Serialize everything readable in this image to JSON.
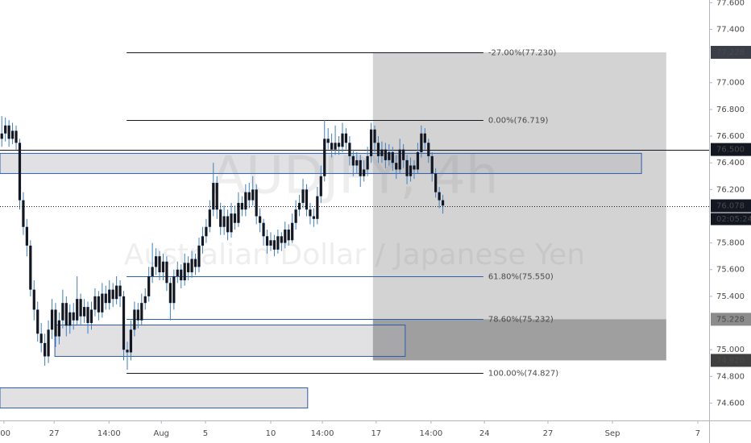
{
  "chart_data": {
    "type": "candlestick",
    "watermark": "AUDJPY, 4h",
    "subtitle": "Australian Dollar / Japanese Yen",
    "color": "#131722",
    "wick_color": "#3d7fc1",
    "xlim": [
      -0.5,
      197.25
    ],
    "ylim": [
      74.47,
      77.62
    ],
    "xticks": [
      {
        "value": 0.6,
        "label": ":00"
      },
      {
        "value": 14.6,
        "label": "27"
      },
      {
        "value": 29.9,
        "label": "14:00"
      },
      {
        "value": 44.5,
        "label": "Aug"
      },
      {
        "value": 56.8,
        "label": "5"
      },
      {
        "value": 75,
        "label": "10"
      },
      {
        "value": 89.4,
        "label": "14:00"
      },
      {
        "value": 104.4,
        "label": "17"
      },
      {
        "value": 119.7,
        "label": "14:00"
      },
      {
        "value": 134.6,
        "label": "24"
      },
      {
        "value": 152.3,
        "label": "27"
      },
      {
        "value": 170.3,
        "label": "Sep"
      },
      {
        "value": 194.1,
        "label": "7"
      }
    ],
    "yticks": [
      {
        "value": 74.6,
        "label": "74.600"
      },
      {
        "value": 74.8,
        "label": "74.800"
      },
      {
        "value": 75.0,
        "label": "75.000"
      },
      {
        "value": 75.4,
        "label": "75.400"
      },
      {
        "value": 75.6,
        "label": "75.600"
      },
      {
        "value": 75.8,
        "label": "75.800"
      },
      {
        "value": 76.2,
        "label": "76.200"
      },
      {
        "value": 76.4,
        "label": "76.400"
      },
      {
        "value": 76.6,
        "label": "76.600"
      },
      {
        "value": 76.8,
        "label": "76.800"
      },
      {
        "value": 77.0,
        "label": "77.000"
      },
      {
        "value": 77.4,
        "label": "77.400"
      },
      {
        "value": 77.6,
        "label": "77.600"
      }
    ],
    "x": [
      0,
      1,
      2,
      3,
      4,
      5,
      6,
      7,
      8,
      9,
      10,
      11,
      12,
      13,
      14,
      15,
      16,
      17,
      18,
      19,
      20,
      21,
      22,
      23,
      24,
      25,
      26,
      27,
      28,
      29,
      30,
      31,
      32,
      33,
      34,
      35,
      36,
      37,
      38,
      39,
      40,
      41,
      42,
      43,
      44,
      45,
      46,
      47,
      48,
      49,
      50,
      51,
      52,
      53,
      54,
      55,
      56,
      57,
      58,
      59,
      60,
      61,
      62,
      63,
      64,
      65,
      66,
      67,
      68,
      69,
      70,
      71,
      72,
      73,
      74,
      75,
      76,
      77,
      78,
      79,
      80,
      81,
      82,
      83,
      84,
      85,
      86,
      87,
      88,
      89,
      90,
      91,
      92,
      93,
      94,
      95,
      96,
      97,
      98,
      99,
      100,
      101,
      102,
      103,
      104,
      105,
      106,
      107,
      108,
      109,
      110,
      111,
      112,
      113,
      114,
      115,
      116,
      117,
      118,
      119,
      120,
      121,
      122,
      123
    ],
    "open": [
      76.58,
      76.62,
      76.68,
      76.58,
      76.64,
      76.55,
      76.12,
      75.92,
      75.78,
      75.45,
      75.3,
      75.12,
      75.05,
      74.95,
      75.15,
      75.3,
      75.1,
      75.22,
      75.35,
      75.18,
      75.28,
      75.22,
      75.38,
      75.25,
      75.32,
      75.2,
      75.3,
      75.4,
      75.28,
      75.42,
      75.35,
      75.45,
      75.38,
      75.48,
      75.4,
      75.0,
      74.98,
      75.15,
      75.3,
      75.22,
      75.35,
      75.4,
      75.55,
      75.62,
      75.7,
      75.58,
      75.66,
      75.5,
      75.35,
      75.55,
      75.6,
      75.52,
      75.65,
      75.58,
      75.68,
      75.62,
      75.78,
      75.85,
      75.92,
      76.05,
      76.25,
      76.05,
      75.92,
      76.0,
      75.88,
      76.02,
      75.95,
      76.1,
      76.05,
      76.18,
      76.12,
      76.2,
      76.0,
      75.95,
      75.85,
      75.78,
      75.82,
      75.75,
      75.85,
      75.8,
      75.9,
      75.82,
      75.95,
      76.05,
      76.1,
      76.2,
      76.05,
      76.0,
      75.98,
      76.15,
      76.3,
      76.58,
      76.55,
      76.5,
      76.55,
      76.52,
      76.62,
      76.55,
      76.45,
      76.38,
      76.42,
      76.3,
      76.35,
      76.45,
      76.65,
      76.55,
      76.45,
      76.5,
      76.42,
      76.48,
      76.4,
      76.35,
      76.5,
      76.42,
      76.3,
      76.38,
      76.35,
      76.48,
      76.62,
      76.55,
      76.45,
      76.32,
      76.18,
      76.12
    ],
    "high": [
      76.75,
      76.74,
      76.72,
      76.7,
      76.68,
      76.58,
      76.18,
      75.98,
      75.82,
      75.52,
      75.36,
      75.2,
      75.12,
      75.22,
      75.38,
      75.35,
      75.28,
      75.45,
      75.4,
      75.34,
      75.35,
      75.55,
      75.42,
      75.38,
      75.36,
      75.36,
      75.46,
      75.44,
      75.5,
      75.48,
      75.52,
      75.5,
      75.55,
      75.52,
      75.44,
      75.06,
      75.22,
      75.36,
      75.35,
      75.42,
      75.46,
      75.62,
      75.8,
      75.76,
      75.74,
      75.72,
      75.7,
      75.54,
      75.6,
      75.66,
      75.64,
      75.72,
      75.7,
      75.74,
      75.72,
      75.84,
      75.92,
      75.98,
      76.12,
      76.4,
      76.3,
      76.1,
      76.08,
      76.05,
      76.1,
      76.08,
      76.18,
      76.15,
      76.24,
      76.25,
      76.3,
      76.24,
      76.06,
      75.98,
      75.9,
      75.88,
      75.86,
      75.9,
      75.88,
      75.96,
      75.94,
      76.02,
      76.12,
      76.16,
      76.28,
      76.24,
      76.1,
      76.06,
      76.22,
      76.38,
      76.72,
      76.66,
      76.62,
      76.68,
      76.6,
      76.7,
      76.66,
      76.6,
      76.5,
      76.48,
      76.46,
      76.42,
      76.52,
      76.7,
      76.68,
      76.6,
      76.56,
      76.55,
      76.54,
      76.52,
      76.46,
      76.58,
      76.54,
      76.46,
      76.44,
      76.42,
      76.55,
      76.68,
      76.66,
      76.58,
      76.48,
      76.36,
      76.22,
      76.16
    ],
    "low": [
      76.52,
      76.56,
      76.52,
      76.54,
      76.5,
      76.05,
      75.86,
      75.7,
      75.4,
      75.22,
      75.06,
      74.98,
      74.88,
      74.9,
      75.08,
      75.02,
      75.04,
      75.16,
      75.1,
      75.12,
      75.15,
      75.18,
      75.18,
      75.2,
      75.12,
      75.15,
      75.25,
      75.22,
      75.24,
      75.3,
      75.3,
      75.32,
      75.34,
      75.32,
      74.92,
      74.85,
      74.92,
      75.1,
      75.16,
      75.18,
      75.3,
      75.36,
      75.5,
      75.56,
      75.52,
      75.52,
      75.44,
      75.22,
      75.3,
      75.5,
      75.46,
      75.48,
      75.52,
      75.54,
      75.56,
      75.58,
      75.72,
      75.8,
      75.88,
      76.0,
      75.98,
      75.86,
      75.86,
      75.82,
      75.84,
      75.9,
      75.92,
      76.0,
      76.0,
      76.06,
      76.08,
      75.94,
      75.88,
      75.78,
      75.72,
      75.74,
      75.7,
      75.72,
      75.74,
      75.76,
      75.78,
      75.8,
      75.9,
      76.0,
      76.06,
      76.0,
      75.94,
      75.92,
      75.94,
      76.1,
      76.26,
      76.5,
      76.44,
      76.46,
      76.46,
      76.48,
      76.5,
      76.38,
      76.3,
      76.32,
      76.22,
      76.26,
      76.3,
      76.4,
      76.48,
      76.4,
      76.4,
      76.36,
      76.38,
      76.34,
      76.28,
      76.32,
      76.36,
      76.24,
      76.26,
      76.28,
      76.32,
      76.44,
      76.5,
      76.4,
      76.26,
      76.14,
      76.06,
      76.02
    ],
    "close": [
      76.62,
      76.68,
      76.58,
      76.64,
      76.55,
      76.12,
      75.92,
      75.78,
      75.45,
      75.3,
      75.12,
      75.05,
      74.95,
      75.15,
      75.3,
      75.1,
      75.22,
      75.35,
      75.18,
      75.28,
      75.22,
      75.38,
      75.25,
      75.32,
      75.2,
      75.3,
      75.4,
      75.28,
      75.42,
      75.35,
      75.45,
      75.38,
      75.48,
      75.4,
      75.0,
      74.98,
      75.15,
      75.3,
      75.22,
      75.35,
      75.4,
      75.55,
      75.62,
      75.7,
      75.58,
      75.66,
      75.5,
      75.35,
      75.55,
      75.6,
      75.52,
      75.65,
      75.58,
      75.68,
      75.62,
      75.78,
      75.85,
      75.92,
      76.05,
      76.25,
      76.05,
      75.92,
      76.0,
      75.88,
      76.02,
      75.95,
      76.1,
      76.05,
      76.18,
      76.12,
      76.2,
      76.0,
      75.95,
      75.85,
      75.78,
      75.82,
      75.75,
      75.85,
      75.8,
      75.9,
      75.82,
      75.95,
      76.05,
      76.1,
      76.2,
      76.05,
      76.0,
      75.98,
      76.15,
      76.3,
      76.58,
      76.55,
      76.5,
      76.55,
      76.52,
      76.62,
      76.55,
      76.45,
      76.38,
      76.42,
      76.3,
      76.35,
      76.45,
      76.65,
      76.55,
      76.45,
      76.5,
      76.42,
      76.48,
      76.4,
      76.35,
      76.5,
      76.42,
      76.3,
      76.38,
      76.35,
      76.48,
      76.62,
      76.55,
      76.45,
      76.32,
      76.18,
      76.12,
      76.08
    ],
    "zones": [
      {
        "x": [
          -0.5,
          178.4
        ],
        "y": [
          76.32,
          76.471
        ]
      },
      {
        "x": [
          14.8,
          112.5
        ],
        "y": [
          74.95,
          75.185
        ]
      },
      {
        "x": [
          -0.5,
          85.3
        ],
        "y": [
          74.563,
          74.714
        ]
      }
    ],
    "position": {
      "x": [
        103.5,
        185.3
      ],
      "target": {
        "value": 77.228,
        "label": "77.228"
      },
      "entry": {
        "value": 75.228,
        "label": "75.228"
      },
      "stop": {
        "value": 74.92,
        "label": "74.920"
      }
    },
    "fib": {
      "x": [
        34.8,
        134.3
      ],
      "levels": [
        {
          "value": 77.23,
          "label": "-27.00%(77.230)",
          "color": "#131722"
        },
        {
          "value": 76.719,
          "label": "0.00%(76.719)",
          "color": "#131722"
        },
        {
          "value": 75.55,
          "label": "61.80%(75.550)",
          "color": "#2a62b0"
        },
        {
          "value": 75.232,
          "label": "78.60%(75.232)",
          "color": "#2a62b0"
        },
        {
          "value": 74.827,
          "label": "100.00%(74.827)",
          "color": "#131722"
        }
      ]
    },
    "hline": {
      "value": 76.5,
      "label": "76.500"
    },
    "last_price": {
      "value": 76.078,
      "label": "76.078",
      "countdown": "02:05:24"
    }
  }
}
